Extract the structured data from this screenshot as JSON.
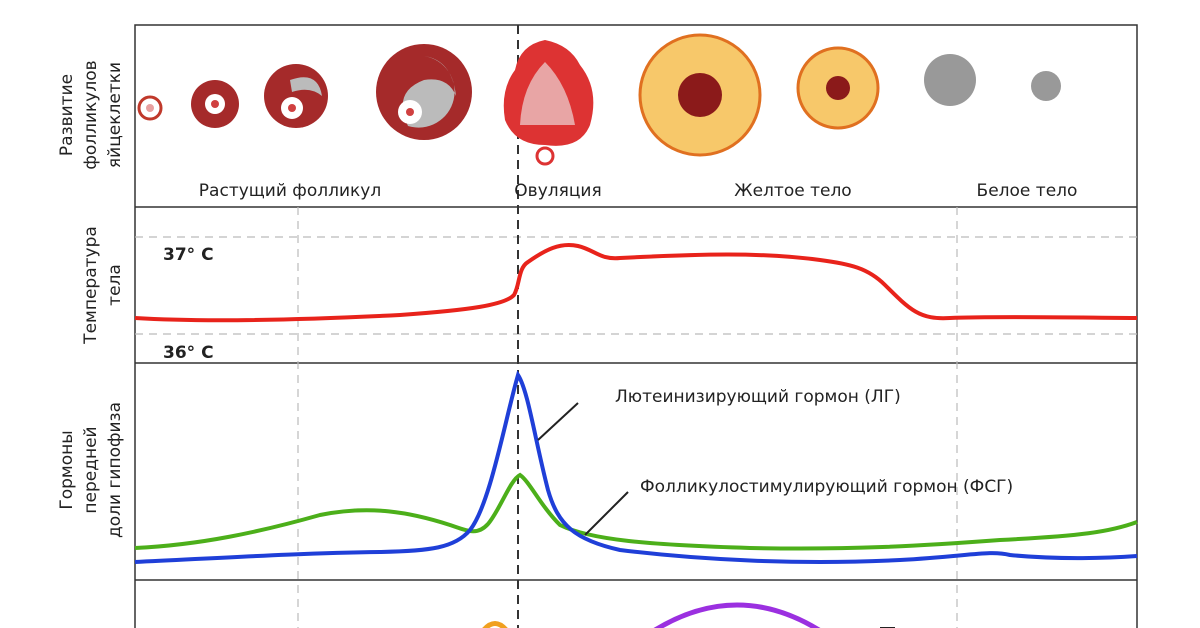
{
  "panels": [
    {
      "label_lines": [
        "Развитие",
        "фолликулов",
        "яйцеклетки"
      ]
    },
    {
      "label_lines": [
        "Температура",
        "тела"
      ]
    },
    {
      "label_lines": [
        "Гормоны",
        "передней",
        "доли гипофиза"
      ]
    }
  ],
  "stages": [
    "Растущий фолликул",
    "Овуляция",
    "Желтое тело",
    "Белое тело"
  ],
  "temperature": {
    "high": "37° C",
    "low": "36° C"
  },
  "hormones": {
    "lh": "Лютеинизирующий гормон (ЛГ)",
    "fsh": "Фолликулостимулирующий гормон (ФСГ)"
  }
}
